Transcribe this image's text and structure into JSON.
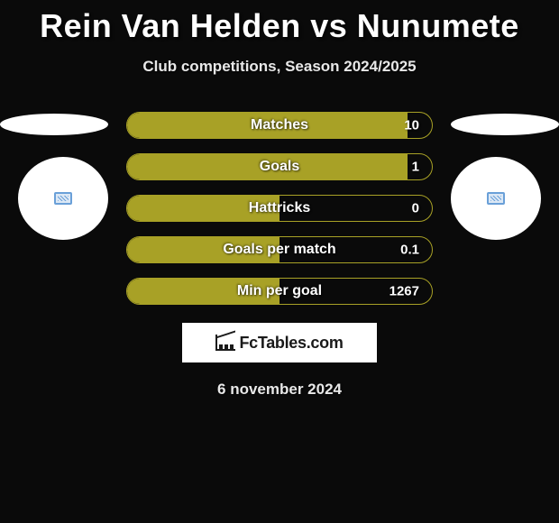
{
  "title": "Rein Van Helden vs Nunumete",
  "subtitle": "Club competitions, Season 2024/2025",
  "date": "6 november 2024",
  "logo_text": "FcTables.com",
  "background_color": "#0a0a0a",
  "bar_border_color": "#a8a126",
  "bar_fill_color": "#a8a126",
  "text_color": "#ffffff",
  "title_fontsize": 36,
  "subtitle_fontsize": 17,
  "stats": [
    {
      "label": "Matches",
      "value": "10",
      "fill_pct": 92
    },
    {
      "label": "Goals",
      "value": "1",
      "fill_pct": 92
    },
    {
      "label": "Hattricks",
      "value": "0",
      "fill_pct": 50
    },
    {
      "label": "Goals per match",
      "value": "0.1",
      "fill_pct": 50
    },
    {
      "label": "Min per goal",
      "value": "1267",
      "fill_pct": 50
    }
  ],
  "ellipse": {
    "width": 120,
    "height": 24,
    "color": "#ffffff"
  },
  "badge": {
    "diameter": 100,
    "color": "#ffffff"
  }
}
